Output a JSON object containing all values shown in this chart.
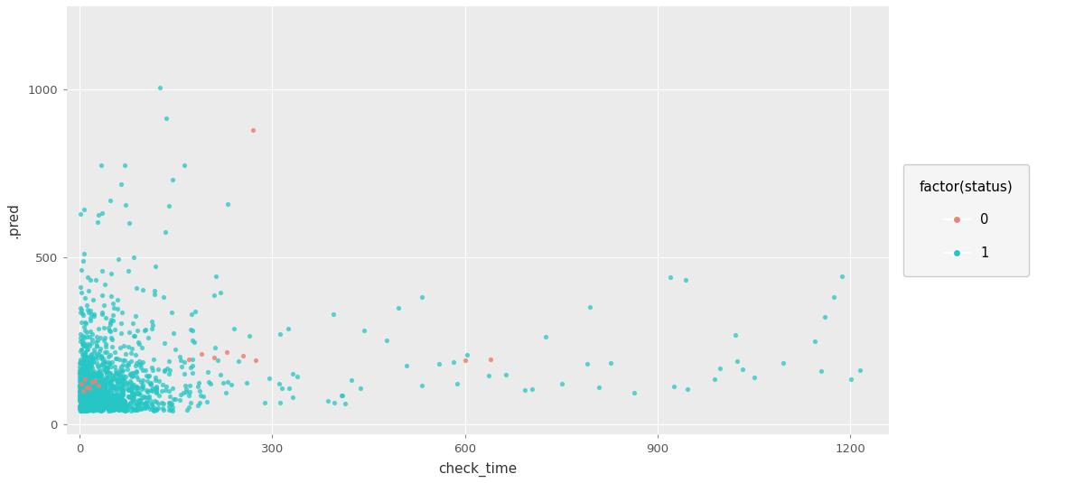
{
  "title": "",
  "xlabel": "check_time",
  "ylabel": ".pred",
  "xlim": [
    -20,
    1260
  ],
  "ylim": [
    -30,
    1250
  ],
  "xticks": [
    0,
    300,
    600,
    900,
    1200
  ],
  "yticks": [
    0,
    500,
    1000
  ],
  "bg_color": "#EBEBEB",
  "grid_color": "#FFFFFF",
  "color_0": "#F08070",
  "color_1": "#26C6C6",
  "alpha": 0.75,
  "point_size": 14,
  "legend_title": "factor(status)",
  "legend_labels": [
    "0",
    "1"
  ],
  "seed": 42,
  "n_dense": 1200,
  "n_mid": 200,
  "n_far": 40
}
